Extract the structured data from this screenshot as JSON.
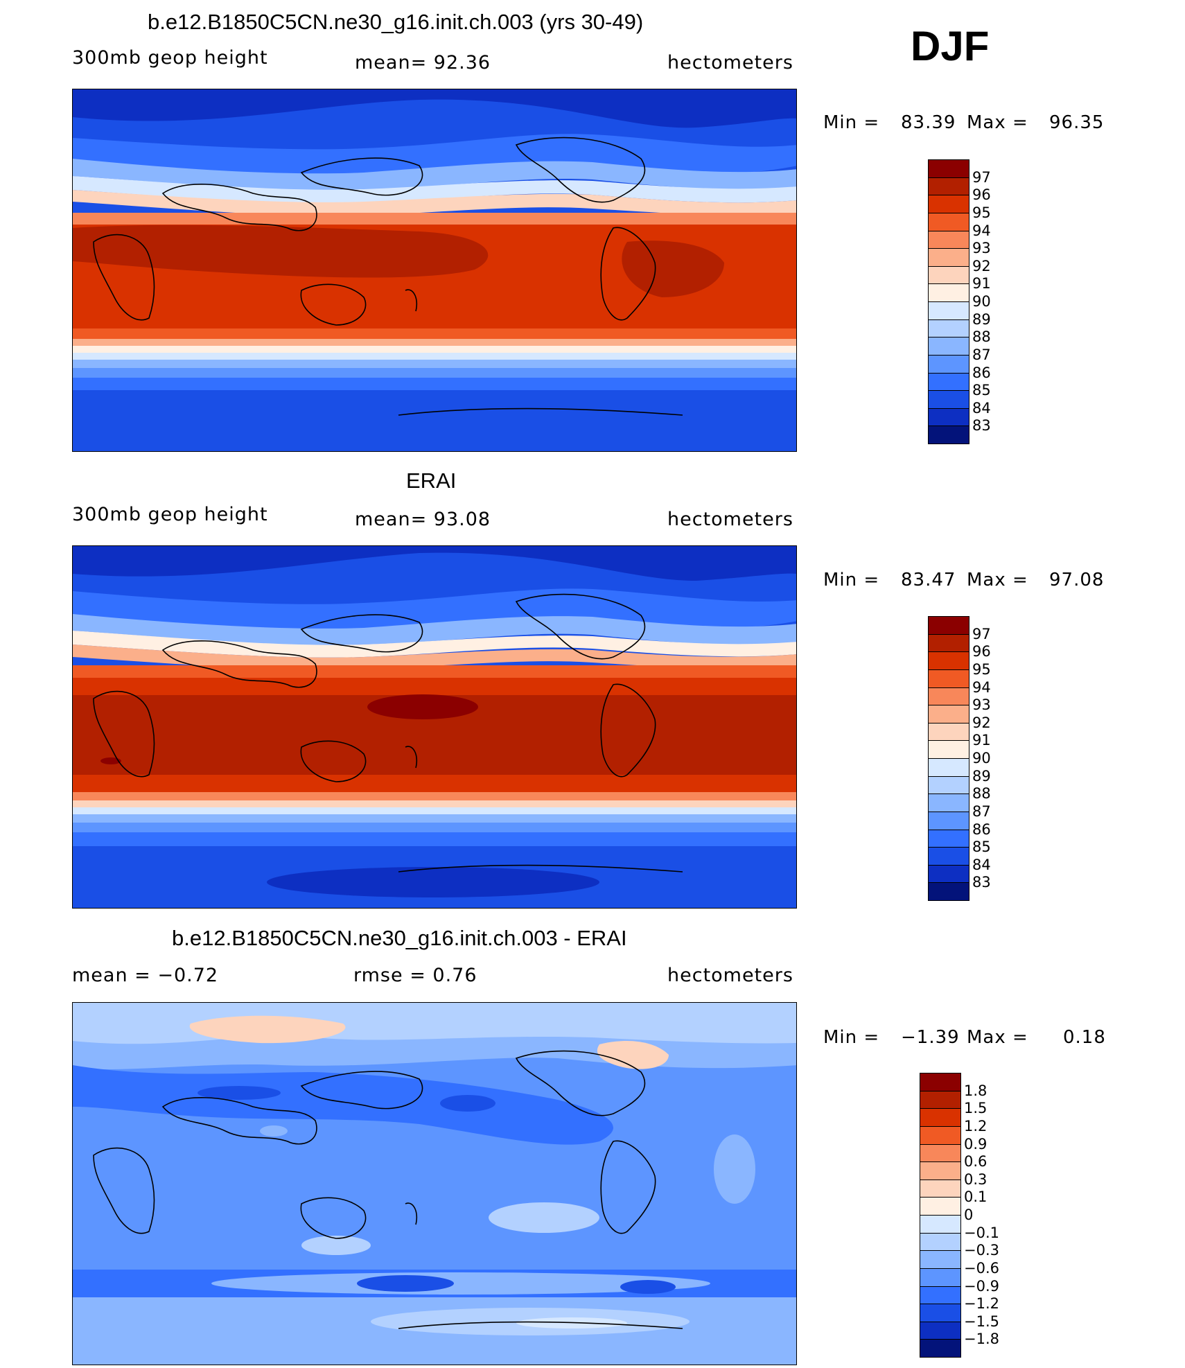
{
  "season": "DJF",
  "units": "hectometers",
  "variable": "300mb geop height",
  "panels": [
    {
      "title": "b.e12.B1850C5CN.ne30_g16.init.ch.003 (yrs 30-49)",
      "left_label": "300mb geop height",
      "center_label": "mean=   92.36",
      "right_label": "hectometers",
      "min_label": "Min =",
      "min_value": "83.39",
      "max_label": "Max =",
      "max_value": "96.35",
      "colorbar_labels": [
        "97",
        "96",
        "95",
        "94",
        "93",
        "92",
        "91",
        "90",
        "89",
        "88",
        "87",
        "86",
        "85",
        "84",
        "83"
      ],
      "colorbar_colors": [
        "#8b0000",
        "#b22000",
        "#d93200",
        "#f05a24",
        "#f8875a",
        "#fbaf8a",
        "#fdd4bd",
        "#fff0e3",
        "#d6e8ff",
        "#b3d1ff",
        "#8ab6ff",
        "#5d95ff",
        "#3370ff",
        "#1a4fe6",
        "#0d2fc2",
        "#03137a"
      ]
    },
    {
      "title": "ERAI",
      "left_label": "300mb geop height",
      "center_label": "mean=   93.08",
      "right_label": "hectometers",
      "min_label": "Min =",
      "min_value": "83.47",
      "max_label": "Max =",
      "max_value": "97.08",
      "colorbar_labels": [
        "97",
        "96",
        "95",
        "94",
        "93",
        "92",
        "91",
        "90",
        "89",
        "88",
        "87",
        "86",
        "85",
        "84",
        "83"
      ],
      "colorbar_colors": [
        "#8b0000",
        "#b22000",
        "#d93200",
        "#f05a24",
        "#f8875a",
        "#fbaf8a",
        "#fdd4bd",
        "#fff0e3",
        "#d6e8ff",
        "#b3d1ff",
        "#8ab6ff",
        "#5d95ff",
        "#3370ff",
        "#1a4fe6",
        "#0d2fc2",
        "#03137a"
      ]
    },
    {
      "title": "b.e12.B1850C5CN.ne30_g16.init.ch.003 - ERAI",
      "left_label": "mean =   −0.72",
      "center_label": "rmse =    0.76",
      "right_label": "hectometers",
      "min_label": "Min =",
      "min_value": "−1.39",
      "max_label": "Max =",
      "max_value": "0.18",
      "colorbar_labels": [
        "1.8",
        "1.5",
        "1.2",
        "0.9",
        "0.6",
        "0.3",
        "0.1",
        "0",
        "−0.1",
        "−0.3",
        "−0.6",
        "−0.9",
        "−1.2",
        "−1.5",
        "−1.8"
      ],
      "colorbar_colors": [
        "#8b0000",
        "#b22000",
        "#d93200",
        "#f05a24",
        "#f8875a",
        "#fbaf8a",
        "#fdd4bd",
        "#fff0e3",
        "#d6e8ff",
        "#b3d1ff",
        "#8ab6ff",
        "#5d95ff",
        "#3370ff",
        "#1a4fe6",
        "#0d2fc2",
        "#03137a"
      ]
    }
  ]
}
